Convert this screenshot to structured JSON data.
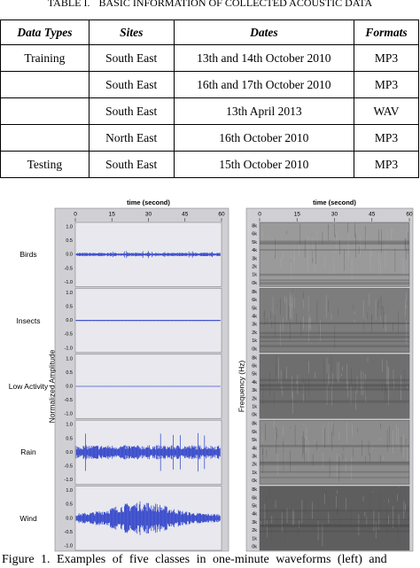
{
  "table": {
    "caption_label": "TABLE I.",
    "caption": "BASIC INFORMATION OF COLLECTED ACOUSTIC DATA",
    "headers": [
      "Data Types",
      "Sites",
      "Dates",
      "Formats"
    ],
    "rows": [
      [
        "Training",
        "South East",
        "13th and 14th October 2010",
        "MP3"
      ],
      [
        null,
        "South East",
        "16th and 17th October 2010",
        "MP3"
      ],
      [
        null,
        "South East",
        "13th April 2013",
        "WAV"
      ],
      [
        null,
        "North East",
        "16th October 2010",
        "MP3"
      ],
      [
        "Testing",
        "South East",
        "15th October 2010",
        "MP3"
      ]
    ]
  },
  "figure": {
    "left": {
      "xlabel": "time (second)",
      "xticks": [
        "0",
        "15",
        "30",
        "45",
        "60"
      ],
      "ylabel": "Normalized Amplitude",
      "yticks": [
        "1.0",
        "0.5",
        "0.0",
        "-0.5",
        "-1.0"
      ]
    },
    "right": {
      "xlabel": "time (second)",
      "xticks": [
        "0",
        "15",
        "30",
        "45",
        "60"
      ],
      "ylabel": "Frequency (Hz)",
      "yticks": [
        "8k",
        "6k",
        "5k",
        "4k",
        "3k",
        "2k",
        "1k",
        "0k"
      ]
    },
    "classes": [
      "Birds",
      "Insects",
      "Low Activity",
      "Rain",
      "Wind"
    ],
    "caption": "Figure 1.   Examples of five classes in one-minute waveforms (left) and"
  }
}
